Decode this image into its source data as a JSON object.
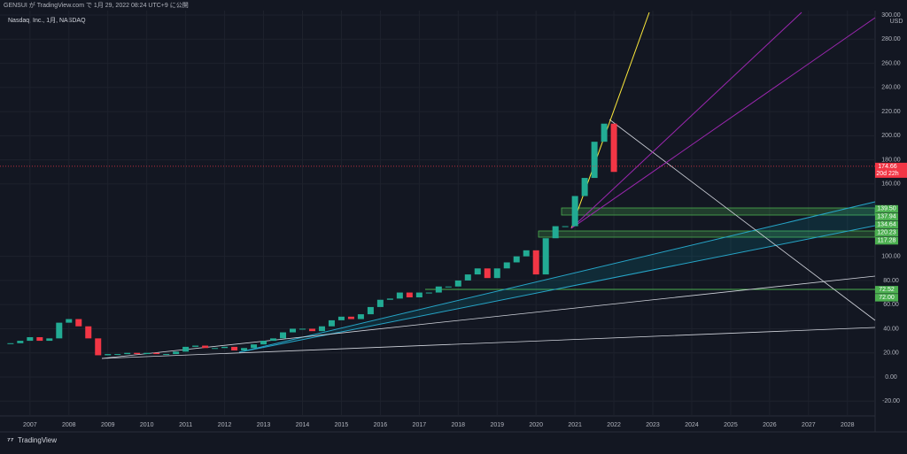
{
  "header": {
    "publisher": "GENSUI が TradingView.com で 1月 29, 2022 08:24 UTC+9 に公開",
    "symbol": "Nasdaq, Inc., 1月, NASDAQ",
    "currency": "USD",
    "brand": "TradingView"
  },
  "chart_data": {
    "type": "candlestick",
    "x": [
      2006.5,
      2006.75,
      2007,
      2007.25,
      2007.5,
      2007.75,
      2008,
      2008.25,
      2008.5,
      2008.75,
      2009,
      2009.25,
      2009.5,
      2009.75,
      2010,
      2010.25,
      2010.5,
      2010.75,
      2011,
      2011.25,
      2011.5,
      2011.75,
      2012,
      2012.25,
      2012.5,
      2012.75,
      2013,
      2013.25,
      2013.5,
      2013.75,
      2014,
      2014.25,
      2014.5,
      2014.75,
      2015,
      2015.25,
      2015.5,
      2015.75,
      2016,
      2016.25,
      2016.5,
      2016.75,
      2017,
      2017.25,
      2017.5,
      2017.75,
      2018,
      2018.25,
      2018.5,
      2018.75,
      2019,
      2019.25,
      2019.5,
      2019.75,
      2020,
      2020.25,
      2020.5,
      2020.75,
      2021,
      2021.25,
      2021.5,
      2021.75,
      2022
    ],
    "close": [
      28,
      30,
      33,
      30,
      32,
      45,
      48,
      42,
      32,
      18,
      19,
      19,
      20,
      19,
      20,
      19,
      19,
      21,
      25,
      26,
      24,
      24,
      25,
      22,
      24,
      27,
      30,
      32,
      37,
      40,
      40,
      38,
      42,
      47,
      50,
      48,
      52,
      58,
      64,
      65,
      70,
      66,
      70,
      70,
      75,
      75,
      80,
      85,
      90,
      82,
      90,
      95,
      100,
      105,
      85,
      115,
      125,
      125,
      150,
      165,
      195,
      210,
      170
    ],
    "up_color": "#22ab94",
    "down_color": "#f23645",
    "xlim": [
      2006.23,
      2028.71
    ],
    "xticks": [
      2007,
      2008,
      2009,
      2010,
      2011,
      2012,
      2013,
      2014,
      2015,
      2016,
      2017,
      2018,
      2019,
      2020,
      2021,
      2022,
      2023,
      2024,
      2025,
      2026,
      2027,
      2028
    ],
    "ylim": [
      -32.3,
      303.7
    ],
    "yticks": [
      {
        "value": 300,
        "label": "300.00"
      },
      {
        "value": 280,
        "label": "280.00"
      },
      {
        "value": 260,
        "label": "260.00"
      },
      {
        "value": 240,
        "label": "240.00"
      },
      {
        "value": 220,
        "label": "220.00"
      },
      {
        "value": 200,
        "label": "200.00"
      },
      {
        "value": 180,
        "label": "180.00"
      },
      {
        "value": 160,
        "label": "160.00"
      },
      {
        "value": 100,
        "label": "100.00"
      },
      {
        "value": 80,
        "label": "80.00"
      },
      {
        "value": 60,
        "label": "60.00"
      },
      {
        "value": 40,
        "label": "40.00"
      },
      {
        "value": 20,
        "label": "20.00"
      },
      {
        "value": 0,
        "label": "0.00"
      },
      {
        "value": -20,
        "label": "-20.00"
      }
    ],
    "last_price": 174.66,
    "countdown": "20d 22h",
    "levels": [
      139.5,
      137.94,
      134.64,
      120.23,
      117.28,
      72.52,
      72
    ],
    "value_labels": [
      "139.50",
      "137.94",
      "134.64",
      "120.23",
      "117.28",
      "72.52",
      "72.00"
    ]
  }
}
